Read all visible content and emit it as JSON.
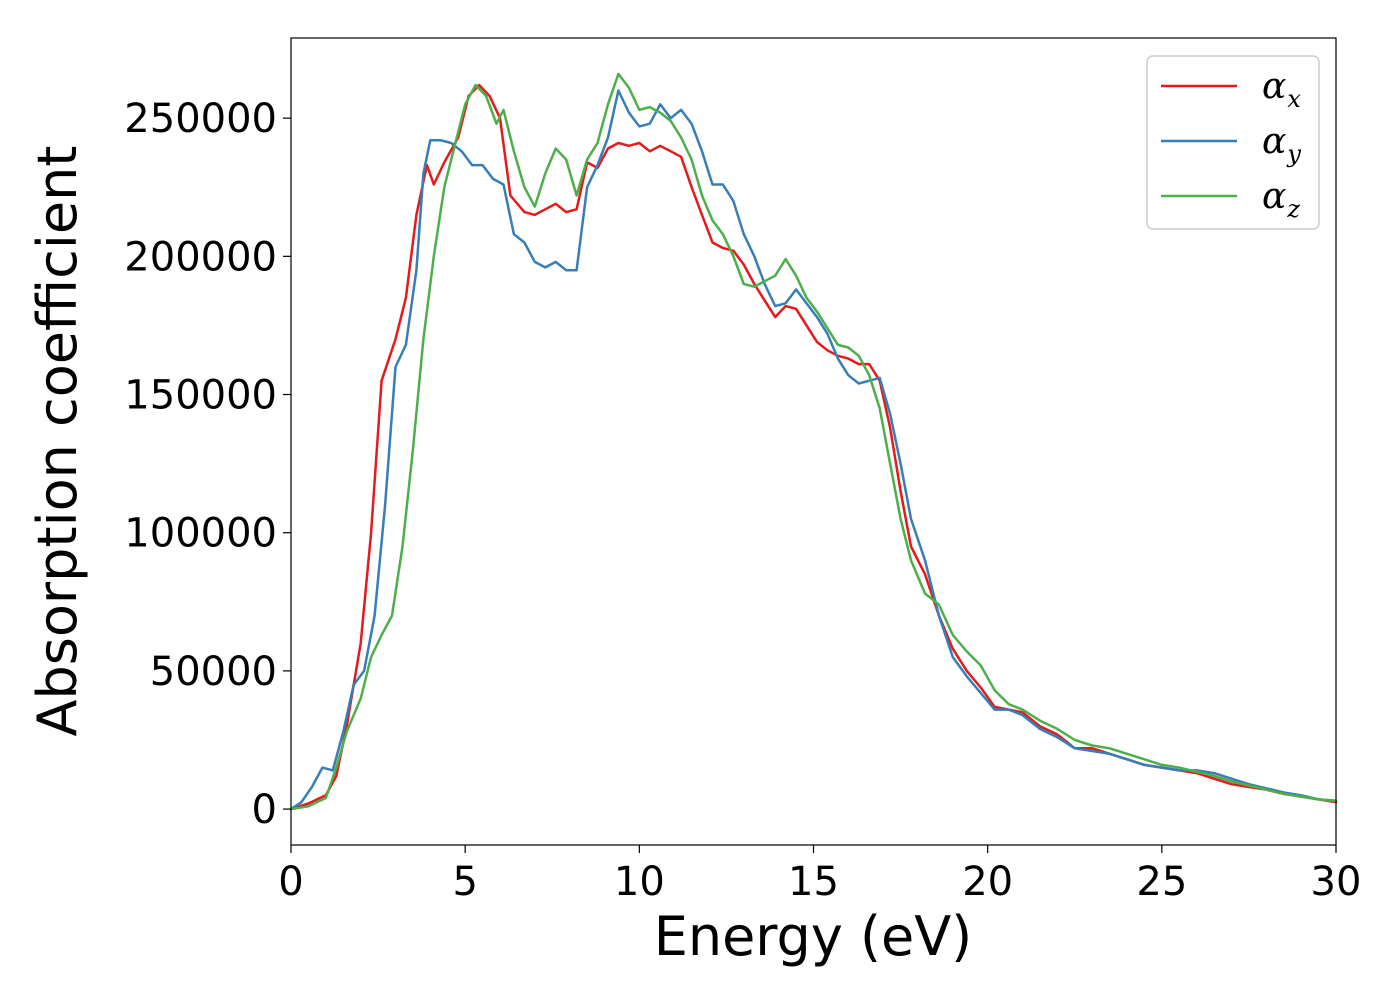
{
  "chart_data": {
    "type": "line",
    "title": "",
    "xlabel": "Energy (eV)",
    "ylabel": "Absorption coefficient",
    "xlim": [
      0,
      30
    ],
    "ylim": [
      -13000,
      279000
    ],
    "xticks": [
      0,
      5,
      10,
      15,
      20,
      25,
      30
    ],
    "xtick_labels": [
      "0",
      "5",
      "10",
      "15",
      "20",
      "25",
      "30"
    ],
    "yticks": [
      0,
      50000,
      100000,
      150000,
      200000,
      250000
    ],
    "ytick_labels": [
      "0",
      "50000",
      "100000",
      "150000",
      "200000",
      "250000"
    ],
    "grid": false,
    "legend_position": "top-right",
    "series": [
      {
        "name": "α_x",
        "symbol": "α",
        "subscript": "x",
        "color": "#e41a1c",
        "x": [
          0,
          0.5,
          1.0,
          1.3,
          1.6,
          2.0,
          2.3,
          2.6,
          3.0,
          3.3,
          3.6,
          3.9,
          4.1,
          4.4,
          4.8,
          5.1,
          5.4,
          5.7,
          6.0,
          6.3,
          6.7,
          7.0,
          7.3,
          7.6,
          7.9,
          8.2,
          8.5,
          8.8,
          9.1,
          9.4,
          9.7,
          10.0,
          10.3,
          10.6,
          10.9,
          11.2,
          11.5,
          11.8,
          12.1,
          12.4,
          12.7,
          13.0,
          13.3,
          13.6,
          13.9,
          14.2,
          14.5,
          14.8,
          15.1,
          15.4,
          15.7,
          16.0,
          16.3,
          16.6,
          16.9,
          17.2,
          17.5,
          17.8,
          18.2,
          18.6,
          19.0,
          19.4,
          19.8,
          20.2,
          20.6,
          21.0,
          21.5,
          22.0,
          22.5,
          23.0,
          23.5,
          24.0,
          24.5,
          25.0,
          25.5,
          26.0,
          26.5,
          27.0,
          27.5,
          28.0,
          28.5,
          29.0,
          29.5,
          30.0
        ],
        "values": [
          0,
          2000,
          5000,
          12000,
          30000,
          60000,
          100000,
          155000,
          170000,
          185000,
          215000,
          233000,
          226000,
          234000,
          243000,
          258000,
          262000,
          258000,
          250000,
          222000,
          216000,
          215000,
          217000,
          219000,
          216000,
          217000,
          234000,
          232000,
          239000,
          241000,
          240000,
          241000,
          238000,
          240000,
          238000,
          236000,
          225000,
          215000,
          205000,
          203000,
          202000,
          197000,
          190000,
          184000,
          178000,
          182000,
          181000,
          175000,
          169000,
          166000,
          164000,
          163000,
          161000,
          161000,
          155000,
          138000,
          115000,
          95000,
          85000,
          70000,
          58000,
          50000,
          44000,
          37000,
          36000,
          35000,
          30000,
          27000,
          22000,
          22000,
          20000,
          18000,
          16000,
          15000,
          14000,
          13000,
          11000,
          9000,
          8000,
          7000,
          5500,
          4500,
          3500,
          2500
        ]
      },
      {
        "name": "α_y",
        "symbol": "α",
        "subscript": "y",
        "color": "#377eb8",
        "x": [
          0,
          0.3,
          0.6,
          0.9,
          1.2,
          1.5,
          1.8,
          2.1,
          2.4,
          2.7,
          3.0,
          3.3,
          3.6,
          3.8,
          4.0,
          4.3,
          4.6,
          4.9,
          5.2,
          5.5,
          5.8,
          6.1,
          6.4,
          6.7,
          7.0,
          7.3,
          7.6,
          7.9,
          8.2,
          8.5,
          8.8,
          9.1,
          9.4,
          9.7,
          10.0,
          10.3,
          10.6,
          10.9,
          11.2,
          11.5,
          11.8,
          12.1,
          12.4,
          12.7,
          13.0,
          13.3,
          13.6,
          13.9,
          14.2,
          14.5,
          14.8,
          15.1,
          15.4,
          15.7,
          16.0,
          16.3,
          16.6,
          16.9,
          17.2,
          17.5,
          17.8,
          18.2,
          18.6,
          19.0,
          19.4,
          19.8,
          20.2,
          20.6,
          21.0,
          21.5,
          22.0,
          22.5,
          23.0,
          23.5,
          24.0,
          24.5,
          25.0,
          25.5,
          26.0,
          26.5,
          27.0,
          27.5,
          28.0,
          28.5,
          29.0,
          29.5,
          30.0
        ],
        "values": [
          0,
          2500,
          8000,
          15000,
          14000,
          28000,
          45000,
          50000,
          70000,
          110000,
          160000,
          168000,
          195000,
          230000,
          242000,
          242000,
          241000,
          238000,
          233000,
          233000,
          228000,
          226000,
          208000,
          205000,
          198000,
          196000,
          198000,
          195000,
          195000,
          225000,
          233000,
          243000,
          260000,
          252000,
          247000,
          248000,
          255000,
          250000,
          253000,
          248000,
          238000,
          226000,
          226000,
          220000,
          208000,
          200000,
          190000,
          182000,
          183000,
          188000,
          183000,
          178000,
          172000,
          163000,
          157000,
          154000,
          155000,
          156000,
          143000,
          125000,
          105000,
          90000,
          70000,
          55000,
          48000,
          42000,
          36000,
          36000,
          34000,
          29000,
          26000,
          22000,
          21000,
          20000,
          18000,
          16000,
          15000,
          14000,
          14000,
          13000,
          11000,
          9000,
          7500,
          6000,
          5000,
          3500,
          3000
        ]
      },
      {
        "name": "α_z",
        "symbol": "α",
        "subscript": "z",
        "color": "#4daf4a",
        "x": [
          0,
          0.5,
          1.0,
          1.3,
          1.6,
          2.0,
          2.3,
          2.6,
          2.9,
          3.2,
          3.5,
          3.8,
          4.1,
          4.4,
          4.7,
          5.0,
          5.3,
          5.6,
          5.9,
          6.1,
          6.4,
          6.7,
          7.0,
          7.3,
          7.6,
          7.9,
          8.2,
          8.5,
          8.8,
          9.1,
          9.4,
          9.7,
          10.0,
          10.3,
          10.6,
          10.9,
          11.2,
          11.5,
          11.8,
          12.1,
          12.4,
          12.7,
          13.0,
          13.3,
          13.6,
          13.9,
          14.2,
          14.5,
          14.8,
          15.1,
          15.4,
          15.7,
          16.0,
          16.3,
          16.6,
          16.9,
          17.2,
          17.5,
          17.8,
          18.2,
          18.6,
          19.0,
          19.4,
          19.8,
          20.2,
          20.6,
          21.0,
          21.5,
          22.0,
          22.5,
          23.0,
          23.5,
          24.0,
          24.5,
          25.0,
          25.5,
          26.0,
          26.5,
          27.0,
          27.5,
          28.0,
          28.5,
          29.0,
          29.5,
          30.0
        ],
        "values": [
          0,
          1000,
          4000,
          15000,
          28000,
          40000,
          55000,
          63000,
          70000,
          95000,
          130000,
          170000,
          200000,
          225000,
          240000,
          255000,
          262000,
          258000,
          248000,
          253000,
          238000,
          225000,
          218000,
          230000,
          239000,
          235000,
          222000,
          235000,
          241000,
          255000,
          266000,
          261000,
          253000,
          254000,
          252000,
          249000,
          243000,
          235000,
          222000,
          213000,
          208000,
          200000,
          190000,
          189000,
          191000,
          193000,
          199000,
          193000,
          185000,
          180000,
          174000,
          168000,
          167000,
          164000,
          157000,
          145000,
          125000,
          105000,
          90000,
          78000,
          74000,
          63000,
          57000,
          52000,
          43000,
          38000,
          36000,
          32000,
          29000,
          25000,
          23000,
          22000,
          20000,
          18000,
          16000,
          15000,
          13500,
          12000,
          10000,
          8500,
          7000,
          5500,
          4500,
          3500,
          3000
        ]
      }
    ]
  }
}
